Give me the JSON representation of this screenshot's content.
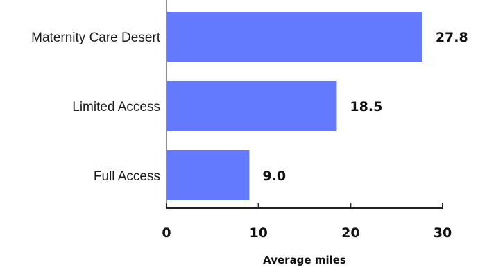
{
  "chart_data": {
    "type": "bar",
    "orientation": "horizontal",
    "categories": [
      "Maternity Care Desert",
      "Limited Access",
      "Full Access"
    ],
    "values": [
      27.8,
      18.5,
      9.0
    ],
    "value_labels": [
      "27.8",
      "18.5",
      "9.0"
    ],
    "xlabel": "Average miles",
    "ylabel": "",
    "xlim": [
      0,
      30
    ],
    "xticks": [
      0,
      10,
      20,
      30
    ],
    "xtick_labels": [
      "0",
      "10",
      "20",
      "30"
    ],
    "grid": false,
    "bar_color": "#6379FE"
  }
}
